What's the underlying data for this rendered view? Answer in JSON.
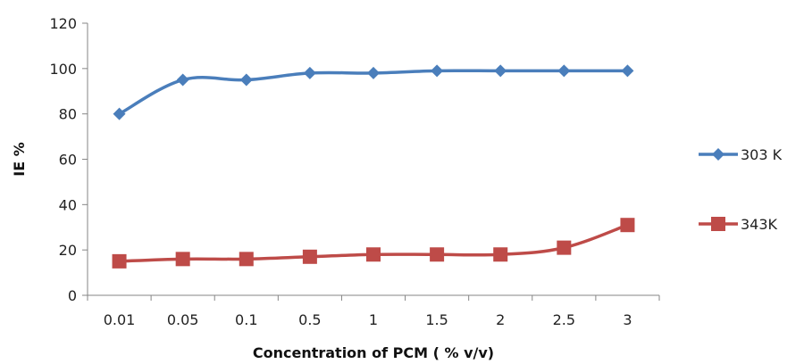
{
  "chart_data": {
    "type": "line",
    "categories": [
      "0.01",
      "0.05",
      "0.1",
      "0.5",
      "1",
      "1.5",
      "2",
      "2.5",
      "3"
    ],
    "series": [
      {
        "name": "303 K",
        "values": [
          80,
          95,
          95,
          98,
          98,
          99,
          99,
          99,
          99
        ],
        "color": "#4a7ebb",
        "marker": "diamond"
      },
      {
        "name": "343K",
        "values": [
          15,
          16,
          16,
          17,
          18,
          18,
          18,
          21,
          31
        ],
        "color": "#be4b48",
        "marker": "square"
      }
    ],
    "title": "",
    "xlabel": "Concentration  of PCM  ( % v/v)",
    "ylabel": "IE %",
    "ylim": [
      0,
      120
    ],
    "yticks": [
      0,
      20,
      40,
      60,
      80,
      100,
      120
    ],
    "grid": false,
    "legend": "right"
  }
}
